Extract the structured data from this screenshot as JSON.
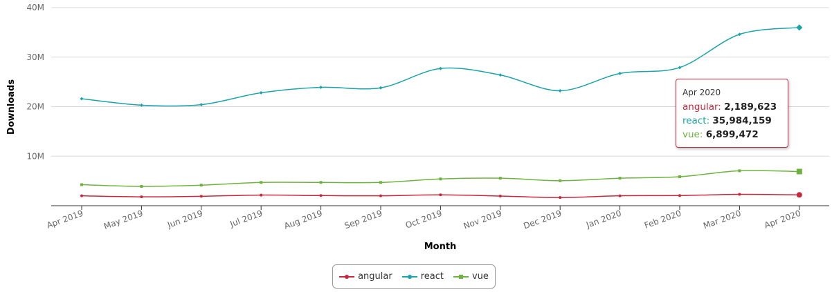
{
  "chart_data": {
    "type": "line",
    "ylabel": "Downloads",
    "xlabel": "Month",
    "categories": [
      "Apr 2019",
      "May 2019",
      "Jun 2019",
      "Jul 2019",
      "Aug 2019",
      "Sep 2019",
      "Oct 2019",
      "Nov 2019",
      "Dec 2019",
      "Jan 2020",
      "Feb 2020",
      "Mar 2020",
      "Apr 2020"
    ],
    "ylim": [
      0,
      40000000
    ],
    "yticks": [
      10000000,
      20000000,
      30000000,
      40000000
    ],
    "ytick_labels": [
      "10M",
      "20M",
      "30M",
      "40M"
    ],
    "grid": true,
    "legend_position": "bottom-center",
    "series": [
      {
        "name": "angular",
        "color": "#c8273b",
        "values": [
          2000000,
          1800000,
          1900000,
          2150000,
          2050000,
          2000000,
          2200000,
          1950000,
          1650000,
          2000000,
          2050000,
          2300000,
          2189623
        ]
      },
      {
        "name": "react",
        "color": "#1aa3aa",
        "values": [
          21600000,
          20300000,
          20400000,
          22800000,
          23900000,
          23800000,
          27700000,
          26400000,
          23200000,
          26700000,
          27900000,
          34600000,
          35984159
        ]
      },
      {
        "name": "vue",
        "color": "#6eb23f",
        "values": [
          4250000,
          3900000,
          4150000,
          4700000,
          4700000,
          4700000,
          5400000,
          5550000,
          5050000,
          5550000,
          5850000,
          7050000,
          6899472
        ]
      }
    ],
    "tooltip": {
      "title": "Apr 2020",
      "rows": [
        {
          "name": "angular",
          "value": "2,189,623",
          "color": "#c8273b"
        },
        {
          "name": "react",
          "value": "35,984,159",
          "color": "#1aa3aa"
        },
        {
          "name": "vue",
          "value": "6,899,472",
          "color": "#6eb23f"
        }
      ]
    }
  }
}
